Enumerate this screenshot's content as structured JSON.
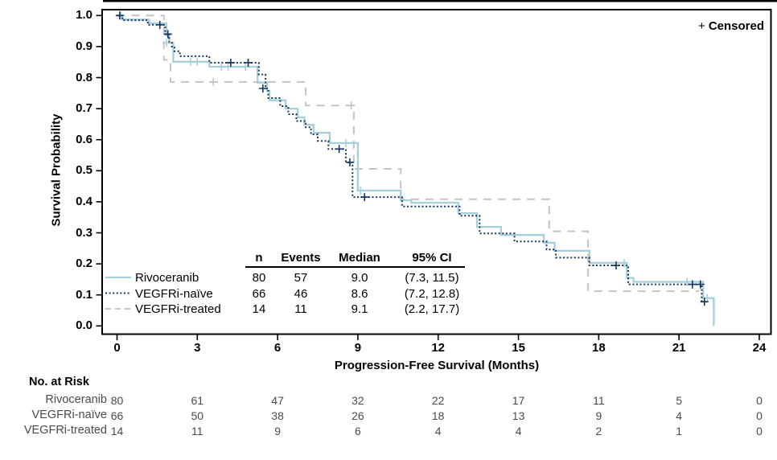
{
  "figure": {
    "censored_plus": "+",
    "censored_word": "Censored"
  },
  "chart_data": {
    "type": "line",
    "subtype": "kaplan-meier-step",
    "title": "",
    "xlabel": "Progression-Free Survival (Months)",
    "ylabel": "Survival Probability",
    "xlim": [
      0,
      24
    ],
    "ylim": [
      0.0,
      1.0
    ],
    "grid": false,
    "x_ticks": [
      0,
      3,
      6,
      9,
      12,
      15,
      18,
      21,
      24
    ],
    "x_tick_labels": [
      "0",
      "3",
      "6",
      "9",
      "12",
      "15",
      "18",
      "21",
      "24"
    ],
    "y_ticks": [
      1.0,
      0.9,
      0.8,
      0.7,
      0.6,
      0.5,
      0.4,
      0.3,
      0.2,
      0.1,
      0.0
    ],
    "y_tick_labels": [
      "1.0",
      "0.9",
      "0.8",
      "0.7",
      "0.6",
      "0.5",
      "0.4",
      "0.3",
      "0.2",
      "0.1",
      "0.0"
    ],
    "legend_position": "inside-bottom-left",
    "legend_table": {
      "headers": [
        "n",
        "Events",
        "Median",
        "95% CI"
      ]
    },
    "series": [
      {
        "name": "Rivoceranib",
        "color": "#A6CEDD",
        "line_style": "solid",
        "n": "80",
        "events": "57",
        "median": "9.0",
        "ci": "(7.3, 11.5)",
        "end_month": 22.3,
        "steps": [
          [
            0,
            1.0
          ],
          [
            0.2,
            0.987
          ],
          [
            1.2,
            0.975
          ],
          [
            1.85,
            0.937
          ],
          [
            1.95,
            0.912
          ],
          [
            2.1,
            0.851
          ],
          [
            3.45,
            0.835
          ],
          [
            5.25,
            0.784
          ],
          [
            5.6,
            0.757
          ],
          [
            5.7,
            0.727
          ],
          [
            6.3,
            0.7
          ],
          [
            6.75,
            0.672
          ],
          [
            7.0,
            0.648
          ],
          [
            7.35,
            0.622
          ],
          [
            7.95,
            0.589
          ],
          [
            9.0,
            0.436
          ],
          [
            10.6,
            0.405
          ],
          [
            11.0,
            0.397
          ],
          [
            12.75,
            0.363
          ],
          [
            13.45,
            0.319
          ],
          [
            14.35,
            0.293
          ],
          [
            15.95,
            0.268
          ],
          [
            16.35,
            0.242
          ],
          [
            17.65,
            0.203
          ],
          [
            19.05,
            0.155
          ],
          [
            19.3,
            0.142
          ],
          [
            21.9,
            0.09
          ],
          [
            22.3,
            0.0
          ]
        ],
        "censors": [
          [
            0.15,
            1.0
          ],
          [
            1.85,
            0.912
          ],
          [
            2.75,
            0.851
          ],
          [
            3.0,
            0.851
          ],
          [
            3.9,
            0.835
          ],
          [
            4.15,
            0.835
          ],
          [
            4.8,
            0.835
          ],
          [
            8.55,
            0.589
          ],
          [
            9.1,
            0.436
          ],
          [
            18.95,
            0.203
          ],
          [
            21.3,
            0.142
          ],
          [
            22.05,
            0.09
          ]
        ]
      },
      {
        "name": "VEGFRi-naïve",
        "color": "#16365C",
        "line_style": "dotted",
        "n": "66",
        "events": "46",
        "median": "8.6",
        "ci": "(7.2, 12.8)",
        "end_month": 22.05,
        "steps": [
          [
            0,
            1.0
          ],
          [
            0.2,
            0.985
          ],
          [
            1.15,
            0.97
          ],
          [
            1.8,
            0.94
          ],
          [
            1.95,
            0.915
          ],
          [
            2.05,
            0.9
          ],
          [
            2.15,
            0.885
          ],
          [
            2.35,
            0.869
          ],
          [
            3.45,
            0.848
          ],
          [
            5.3,
            0.81
          ],
          [
            5.55,
            0.765
          ],
          [
            5.65,
            0.734
          ],
          [
            6.1,
            0.708
          ],
          [
            6.4,
            0.682
          ],
          [
            6.7,
            0.66
          ],
          [
            7.05,
            0.64
          ],
          [
            7.25,
            0.617
          ],
          [
            7.5,
            0.596
          ],
          [
            7.9,
            0.57
          ],
          [
            8.55,
            0.527
          ],
          [
            8.8,
            0.415
          ],
          [
            10.65,
            0.385
          ],
          [
            12.8,
            0.355
          ],
          [
            13.55,
            0.298
          ],
          [
            14.85,
            0.272
          ],
          [
            16.05,
            0.246
          ],
          [
            16.4,
            0.22
          ],
          [
            17.65,
            0.195
          ],
          [
            19.1,
            0.134
          ],
          [
            21.85,
            0.078
          ]
        ],
        "censors": [
          [
            0.1,
            1.0
          ],
          [
            1.6,
            0.97
          ],
          [
            1.9,
            0.94
          ],
          [
            4.25,
            0.848
          ],
          [
            4.9,
            0.848
          ],
          [
            5.45,
            0.765
          ],
          [
            8.3,
            0.57
          ],
          [
            8.7,
            0.527
          ],
          [
            9.25,
            0.415
          ],
          [
            18.65,
            0.195
          ],
          [
            21.5,
            0.134
          ],
          [
            21.8,
            0.134
          ],
          [
            21.95,
            0.078
          ]
        ]
      },
      {
        "name": "VEGFRi-treated",
        "color": "#C4C4C4",
        "line_style": "dashed",
        "n": "14",
        "events": "11",
        "median": "9.1",
        "ci": "(2.2, 17.7)",
        "end_month": 21.75,
        "steps": [
          [
            0,
            1.0
          ],
          [
            1.75,
            0.857
          ],
          [
            2.0,
            0.786
          ],
          [
            7.05,
            0.71
          ],
          [
            8.85,
            0.506
          ],
          [
            10.6,
            0.408
          ],
          [
            16.15,
            0.305
          ],
          [
            17.6,
            0.112
          ]
        ],
        "censors": [
          [
            3.6,
            0.786
          ],
          [
            8.75,
            0.71
          ]
        ]
      }
    ],
    "risk_table": {
      "title": "No. at Risk",
      "months": [
        0,
        3,
        6,
        9,
        12,
        15,
        18,
        21,
        24
      ],
      "rows": [
        {
          "label": "Rivoceranib",
          "counts": [
            "80",
            "61",
            "47",
            "32",
            "22",
            "17",
            "11",
            "5",
            "0"
          ]
        },
        {
          "label": "VEGFRi-naïve",
          "counts": [
            "66",
            "50",
            "38",
            "26",
            "18",
            "13",
            "9",
            "4",
            "0"
          ]
        },
        {
          "label": "VEGFRi-treated",
          "counts": [
            "14",
            "11",
            "9",
            "6",
            "4",
            "4",
            "2",
            "1",
            "0"
          ]
        }
      ]
    }
  }
}
